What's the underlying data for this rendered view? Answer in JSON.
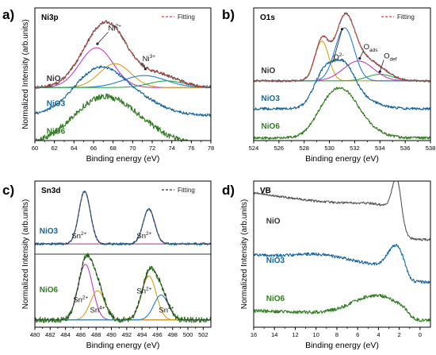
{
  "chart_data": [
    {
      "type": "line",
      "panel_letter": "a)",
      "title": "Ni3p",
      "xlabel": "Binding energy (eV)",
      "ylabel": "Normalized Intensity (arb.units)",
      "xlim": [
        60,
        78
      ],
      "reversed_x": false,
      "xticks": [
        60,
        62,
        64,
        66,
        68,
        70,
        72,
        74,
        76,
        78
      ],
      "legend": {
        "label": "Fitting",
        "placement": "top-right",
        "style": "dashed",
        "color": "#e53935"
      },
      "series": [
        {
          "name": "NiO",
          "color": "#555555",
          "offset": 0.4,
          "peaks": [
            {
              "center": 66.3,
              "height": 0.33,
              "width": 1.9
            },
            {
              "center": 68.2,
              "height": 0.22,
              "width": 1.6
            },
            {
              "center": 71.2,
              "height": 0.09,
              "width": 2.2
            },
            {
              "center": 73.5,
              "height": 0.04,
              "width": 1.8
            }
          ],
          "noise": 0.012
        },
        {
          "name": "NiO3",
          "color": "#1565a0",
          "offset": 0.19,
          "peaks": [
            {
              "center": 66.6,
              "height": 0.35,
              "width": 2.6
            },
            {
              "center": 71.0,
              "height": 0.08,
              "width": 2.4
            }
          ],
          "noise": 0.01
        },
        {
          "name": "NiO6",
          "color": "#2e7d1f",
          "offset": -0.03,
          "peaks": [
            {
              "center": 66.8,
              "height": 0.34,
              "width": 3.0
            },
            {
              "center": 71.0,
              "height": 0.08,
              "width": 2.5
            }
          ],
          "noise": 0.022
        }
      ],
      "components": {
        "offset": 0.4,
        "items": [
          {
            "center": 66.3,
            "height": 0.3,
            "width": 1.7,
            "color": "#c03ec0"
          },
          {
            "center": 68.2,
            "height": 0.18,
            "width": 1.6,
            "color": "#d4a017"
          },
          {
            "center": 71.2,
            "height": 0.09,
            "width": 2.2,
            "color": "#1e7fd6"
          },
          {
            "center": 73.5,
            "height": 0.05,
            "width": 1.8,
            "color": "#2aa84a"
          }
        ]
      },
      "fitting": {
        "series_index": 0,
        "color": "#e53935"
      },
      "series_labels": [
        {
          "text": "NiO",
          "x": 61.2,
          "y": 0.45,
          "color": "#333333"
        },
        {
          "text": "NiO3",
          "x": 61.2,
          "y": 0.26,
          "color": "#1565a0"
        },
        {
          "text": "NiO6",
          "x": 61.2,
          "y": 0.05,
          "color": "#2e7d1f"
        }
      ],
      "annotations": [
        {
          "base": "Ni",
          "sup": "2+",
          "x": 67.5,
          "y": 0.83,
          "arrow_to": [
            66.4,
            0.73
          ]
        },
        {
          "base": "Ni",
          "sup": "3+",
          "x": 71.0,
          "y": 0.6,
          "arrow_to": [
            71.3,
            0.54
          ]
        }
      ]
    },
    {
      "type": "line",
      "panel_letter": "b)",
      "title": "O1s",
      "xlabel": "Binding energy (eV)",
      "ylabel": "",
      "xlim": [
        524,
        538
      ],
      "reversed_x": false,
      "xticks": [
        524,
        526,
        528,
        530,
        532,
        534,
        536,
        538
      ],
      "legend": {
        "label": "Fitting",
        "placement": "top-right",
        "style": "dashed",
        "color": "#e53935"
      },
      "series": [
        {
          "name": "NiO",
          "color": "#555555",
          "offset": 0.45,
          "peaks": [
            {
              "center": 529.4,
              "height": 0.3,
              "width": 0.55
            },
            {
              "center": 531.2,
              "height": 0.41,
              "width": 0.75
            },
            {
              "center": 532.4,
              "height": 0.15,
              "width": 1.2
            },
            {
              "center": 534.0,
              "height": 0.05,
              "width": 1.0
            }
          ],
          "noise": 0.008
        },
        {
          "name": "NiO3",
          "color": "#1565a0",
          "offset": 0.24,
          "peaks": [
            {
              "center": 529.5,
              "height": 0.24,
              "width": 0.8
            },
            {
              "center": 531.1,
              "height": 0.3,
              "width": 0.9
            },
            {
              "center": 532.6,
              "height": 0.06,
              "width": 1.3
            }
          ],
          "noise": 0.01
        },
        {
          "name": "NiO6",
          "color": "#2e7d1f",
          "offset": 0.02,
          "peaks": [
            {
              "center": 529.6,
              "height": 0.16,
              "width": 1.0
            },
            {
              "center": 531.1,
              "height": 0.28,
              "width": 1.1
            },
            {
              "center": 532.6,
              "height": 0.08,
              "width": 1.3
            }
          ],
          "noise": 0.01
        }
      ],
      "components": {
        "offset": 0.45,
        "items": [
          {
            "center": 529.4,
            "height": 0.3,
            "width": 0.55,
            "color": "#d4a017"
          },
          {
            "center": 531.2,
            "height": 0.4,
            "width": 0.75,
            "color": "#1e7fd6"
          },
          {
            "center": 532.3,
            "height": 0.15,
            "width": 1.2,
            "color": "#c03ec0"
          },
          {
            "center": 534.0,
            "height": 0.05,
            "width": 1.0,
            "color": "#2aa84a"
          }
        ]
      },
      "fitting": {
        "series_index": 0,
        "color": "#e53935"
      },
      "series_labels": [
        {
          "text": "NiO",
          "x": 524.6,
          "y": 0.51,
          "color": "#333333"
        },
        {
          "text": "NiO3",
          "x": 524.6,
          "y": 0.3,
          "color": "#1565a0"
        },
        {
          "text": "NiO6",
          "x": 524.6,
          "y": 0.09,
          "color": "#2e7d1f"
        }
      ],
      "annotations": [
        {
          "base": "O",
          "sup": "2-",
          "x": 530.3,
          "y": 0.61,
          "arrow_to": [
            531.0,
            0.84
          ]
        },
        {
          "base": "O",
          "sub": "ads",
          "x": 532.7,
          "y": 0.69,
          "arrow_to": [
            532.4,
            0.62
          ]
        },
        {
          "base": "O",
          "sub": "def",
          "x": 534.3,
          "y": 0.62,
          "arrow_to": [
            534.0,
            0.52
          ]
        }
      ]
    },
    {
      "type": "line",
      "panel_letter": "c)",
      "title": "Sn3d",
      "xlabel": "Binding energy (eV)",
      "ylabel": "Normalized Intensity (arb.units)",
      "xlim": [
        480,
        503
      ],
      "reversed_x": false,
      "xticks": [
        480,
        482,
        484,
        486,
        488,
        490,
        492,
        494,
        496,
        498,
        500,
        502
      ],
      "legend": {
        "label": "Fitting",
        "placement": "top-right",
        "style": "dashed",
        "color": "#333333"
      },
      "series": [
        {
          "name": "NiO3",
          "color": "#1565a0",
          "offset": 0.57,
          "peaks": [
            {
              "center": 486.5,
              "height": 0.36,
              "width": 0.75
            },
            {
              "center": 494.9,
              "height": 0.24,
              "width": 0.75
            }
          ],
          "noise": 0.008
        },
        {
          "name": "NiO6",
          "color": "#2e7d1f",
          "offset": 0.05,
          "peaks": [
            {
              "center": 486.6,
              "height": 0.38,
              "width": 0.95
            },
            {
              "center": 488.2,
              "height": 0.2,
              "width": 0.95
            },
            {
              "center": 494.9,
              "height": 0.3,
              "width": 0.95
            },
            {
              "center": 496.5,
              "height": 0.17,
              "width": 0.95
            }
          ],
          "noise": 0.02
        }
      ],
      "components_list": [
        {
          "offset": 0.57,
          "items": [
            {
              "center": 486.5,
              "height": 0.36,
              "width": 0.75,
              "color": "#c03ec0"
            },
            {
              "center": 494.9,
              "height": 0.24,
              "width": 0.75,
              "color": "#c03ec0"
            }
          ]
        },
        {
          "offset": 0.05,
          "items": [
            {
              "center": 486.6,
              "height": 0.38,
              "width": 0.95,
              "color": "#c03ec0"
            },
            {
              "center": 488.2,
              "height": 0.2,
              "width": 0.95,
              "color": "#d4a017"
            },
            {
              "center": 494.9,
              "height": 0.3,
              "width": 0.95,
              "color": "#d4a017"
            },
            {
              "center": 496.5,
              "height": 0.17,
              "width": 0.95,
              "color": "#1e7fd6"
            }
          ]
        }
      ],
      "fitting_list": [
        {
          "series_index": 0,
          "color": "#444444"
        },
        {
          "series_index": 1,
          "color": "#333333"
        }
      ],
      "baselines": [
        {
          "y": 0.57,
          "color": "#d4a017"
        },
        {
          "y": 0.05,
          "color": "#d4a017"
        }
      ],
      "divider_y": 0.5,
      "series_labels": [
        {
          "text": "NiO3",
          "x": 480.6,
          "y": 0.64,
          "color": "#1565a0"
        },
        {
          "text": "NiO6",
          "x": 480.6,
          "y": 0.24,
          "color": "#2e7d1f"
        }
      ],
      "annotations": [
        {
          "base": "Sn",
          "sup": "2+",
          "x": 484.8,
          "y": 0.61
        },
        {
          "base": "Sn",
          "sup": "2+",
          "x": 493.3,
          "y": 0.61
        },
        {
          "base": "Sn",
          "sup": "2+",
          "x": 485.0,
          "y": 0.17
        },
        {
          "base": "Sn",
          "sup": "4+",
          "x": 487.2,
          "y": 0.1
        },
        {
          "base": "Sn",
          "sup": "2+",
          "x": 493.3,
          "y": 0.23
        },
        {
          "base": "Sn",
          "sup": "4+",
          "x": 496.2,
          "y": 0.1
        }
      ]
    },
    {
      "type": "line",
      "panel_letter": "d)",
      "title": "VB",
      "xlabel": "Binding energy (eV)",
      "ylabel": "Normalized Intensity (arb.units)",
      "xlim": [
        16,
        -1
      ],
      "reversed_x": true,
      "xticks": [
        16,
        14,
        12,
        10,
        8,
        6,
        4,
        2,
        0
      ],
      "legend": null,
      "series": [
        {
          "name": "NiO",
          "color": "#555555",
          "kind": "vb",
          "offset": 0.6,
          "params": {
            "base": 0.16,
            "slope": 0.01,
            "b1c": 4.2,
            "b1h": 0.04,
            "b1w": 2.5,
            "p": 2.2,
            "ph": 0.24,
            "pw": 0.45,
            "edge": 1.6
          },
          "noise": 0.008
        },
        {
          "name": "NiO3",
          "color": "#1565a0",
          "kind": "vb",
          "offset": 0.31,
          "params": {
            "base": 0.09,
            "slope": 0.006,
            "b1c": 9.5,
            "b1h": 0.04,
            "b1w": 2.5,
            "p": 2.3,
            "ph": 0.15,
            "pw": 0.75,
            "edge": 1.2
          },
          "noise": 0.01
        },
        {
          "name": "NiO6",
          "color": "#2e7d1f",
          "kind": "vb",
          "offset": 0.05,
          "params": {
            "base": 0.03,
            "slope": 0.002,
            "b1c": 4.2,
            "b1h": 0.13,
            "b1w": 2.2,
            "p": 2.8,
            "ph": 0.0,
            "pw": 1.0,
            "edge": 1.0
          },
          "noise": 0.012
        }
      ],
      "series_labels": [
        {
          "text": "NiO",
          "x": 14.8,
          "y": 0.71,
          "color": "#333333"
        },
        {
          "text": "NiO3",
          "x": 14.8,
          "y": 0.44,
          "color": "#1565a0"
        },
        {
          "text": "NiO6",
          "x": 14.8,
          "y": 0.18,
          "color": "#2e7d1f"
        }
      ],
      "annotations": []
    }
  ]
}
